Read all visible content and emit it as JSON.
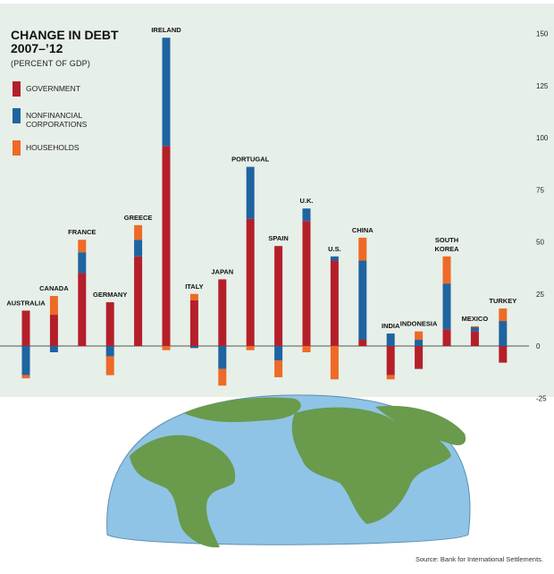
{
  "chart_data": {
    "type": "bar",
    "title": "CHANGE IN DEBT\n2007–’12",
    "subtitle": "(PERCENT OF GDP)",
    "ylim": [
      -25,
      150
    ],
    "yticks": [
      -25,
      0,
      25,
      50,
      75,
      100,
      125,
      150
    ],
    "grid": false,
    "legend_position": "top-left",
    "colors": {
      "government": "#b51f2a",
      "nonfinancial": "#1f64a0",
      "households": "#ee6a26",
      "background": "#e7efe9",
      "ocean": "#8fc4e6",
      "land": "#6a9a4c"
    },
    "legend": [
      {
        "key": "government",
        "label": "GOVERNMENT"
      },
      {
        "key": "nonfinancial",
        "label": "NONFINANCIAL\nCORPORATIONS"
      },
      {
        "key": "households",
        "label": "HOUSEHOLDS"
      }
    ],
    "countries": [
      {
        "name": "AUSTRALIA",
        "government": 17,
        "nonfinancial": -14,
        "households": -1.5
      },
      {
        "name": "CANADA",
        "government": 15,
        "nonfinancial": -3,
        "households": 9
      },
      {
        "name": "FRANCE",
        "government": 35,
        "nonfinancial": 10,
        "households": 6
      },
      {
        "name": "GERMANY",
        "government": 21,
        "nonfinancial": -5,
        "households": -9
      },
      {
        "name": "GREECE",
        "government": 43,
        "nonfinancial": 8,
        "households": 7
      },
      {
        "name": "IRELAND",
        "government": 96,
        "nonfinancial": 52,
        "households": -2
      },
      {
        "name": "ITALY",
        "government": 22,
        "nonfinancial": -1,
        "households": 3
      },
      {
        "name": "JAPAN",
        "government": 32,
        "nonfinancial": -11,
        "households": -8
      },
      {
        "name": "PORTUGAL",
        "government": 61,
        "nonfinancial": 25,
        "households": -2
      },
      {
        "name": "SPAIN",
        "government": 48,
        "nonfinancial": -7,
        "households": -8
      },
      {
        "name": "U.K.",
        "government": 60,
        "nonfinancial": 6,
        "households": -3
      },
      {
        "name": "U.S.",
        "government": 41,
        "nonfinancial": 2,
        "households": -16
      },
      {
        "name": "CHINA",
        "government": 3,
        "nonfinancial": 38,
        "households": 11
      },
      {
        "name": "INDIA",
        "government": -14,
        "nonfinancial": 6,
        "households": -2
      },
      {
        "name": "INDONESIA",
        "government": -11,
        "nonfinancial": 3,
        "households": 4
      },
      {
        "name": "SOUTH KOREA",
        "government": 8,
        "nonfinancial": 22,
        "households": 13
      },
      {
        "name": "MEXICO",
        "government": 7,
        "nonfinancial": 2,
        "households": 0.5
      },
      {
        "name": "TURKEY",
        "government": -8,
        "nonfinancial": 12,
        "households": 6
      }
    ],
    "source": "Source: Bank for International Settlements."
  }
}
